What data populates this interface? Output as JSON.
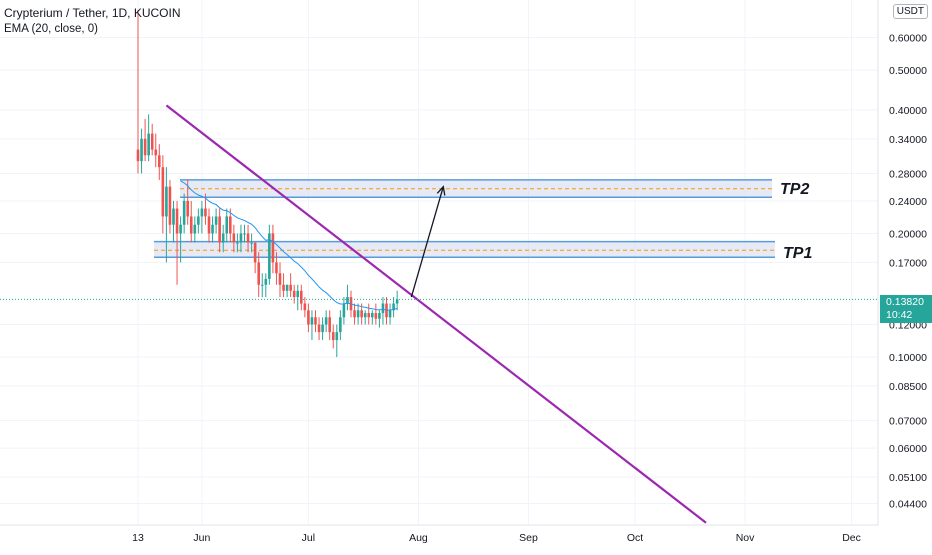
{
  "header": {
    "title": "Crypterium / Tether, 1D, KUCOIN",
    "indicator": "EMA (20, close, 0)",
    "currency": "USDT"
  },
  "last_price": {
    "price": "0.13820",
    "countdown": "10:42"
  },
  "annotations": {
    "tp1": "TP1",
    "tp2": "TP2"
  },
  "colors": {
    "up": "#26a69a",
    "down": "#ef5350",
    "ema": "#2196f3",
    "trendline": "#9c27b0",
    "zone_fill": "#d1d9f0",
    "zone_border": "#5b9bd5",
    "zone_mid": "#ff9800",
    "grid": "#f0f3fa"
  },
  "chart_data": {
    "type": "candlestick",
    "title": "Crypterium / Tether, 1D, KUCOIN",
    "scale": "log",
    "ylim": [
      0.039,
      0.72
    ],
    "x_ticks": [
      "13",
      "Jun",
      "Jul",
      "Aug",
      "Sep",
      "Oct",
      "Nov",
      "Dec"
    ],
    "y_ticks": [
      0.6,
      0.5,
      0.4,
      0.34,
      0.28,
      0.24,
      0.2,
      0.17,
      0.12,
      0.1,
      0.085,
      0.07,
      0.06,
      0.051,
      0.044
    ],
    "y_tick_labels": [
      "0.60000",
      "0.50000",
      "0.40000",
      "0.34000",
      "0.28000",
      "0.24000",
      "0.20000",
      "0.17000",
      "0.12000",
      "0.10000",
      "0.08500",
      "0.07000",
      "0.06000",
      "0.05100",
      "0.04400"
    ],
    "candles": [
      {
        "o": 0.32,
        "h": 0.7,
        "l": 0.28,
        "c": 0.3
      },
      {
        "o": 0.3,
        "h": 0.36,
        "l": 0.28,
        "c": 0.34
      },
      {
        "o": 0.34,
        "h": 0.38,
        "l": 0.3,
        "c": 0.31
      },
      {
        "o": 0.31,
        "h": 0.39,
        "l": 0.3,
        "c": 0.35
      },
      {
        "o": 0.35,
        "h": 0.37,
        "l": 0.31,
        "c": 0.32
      },
      {
        "o": 0.32,
        "h": 0.35,
        "l": 0.29,
        "c": 0.31
      },
      {
        "o": 0.31,
        "h": 0.33,
        "l": 0.27,
        "c": 0.29
      },
      {
        "o": 0.29,
        "h": 0.31,
        "l": 0.2,
        "c": 0.22
      },
      {
        "o": 0.22,
        "h": 0.29,
        "l": 0.17,
        "c": 0.26
      },
      {
        "o": 0.26,
        "h": 0.27,
        "l": 0.2,
        "c": 0.21
      },
      {
        "o": 0.21,
        "h": 0.24,
        "l": 0.19,
        "c": 0.23
      },
      {
        "o": 0.23,
        "h": 0.24,
        "l": 0.15,
        "c": 0.2
      },
      {
        "o": 0.2,
        "h": 0.22,
        "l": 0.17,
        "c": 0.21
      },
      {
        "o": 0.21,
        "h": 0.25,
        "l": 0.2,
        "c": 0.24
      },
      {
        "o": 0.24,
        "h": 0.27,
        "l": 0.21,
        "c": 0.22
      },
      {
        "o": 0.22,
        "h": 0.24,
        "l": 0.19,
        "c": 0.2
      },
      {
        "o": 0.2,
        "h": 0.22,
        "l": 0.19,
        "c": 0.21
      },
      {
        "o": 0.21,
        "h": 0.23,
        "l": 0.2,
        "c": 0.22
      },
      {
        "o": 0.22,
        "h": 0.24,
        "l": 0.2,
        "c": 0.23
      },
      {
        "o": 0.23,
        "h": 0.25,
        "l": 0.21,
        "c": 0.22
      },
      {
        "o": 0.22,
        "h": 0.23,
        "l": 0.19,
        "c": 0.2
      },
      {
        "o": 0.2,
        "h": 0.22,
        "l": 0.19,
        "c": 0.21
      },
      {
        "o": 0.21,
        "h": 0.23,
        "l": 0.2,
        "c": 0.22
      },
      {
        "o": 0.22,
        "h": 0.23,
        "l": 0.18,
        "c": 0.19
      },
      {
        "o": 0.19,
        "h": 0.21,
        "l": 0.18,
        "c": 0.2
      },
      {
        "o": 0.2,
        "h": 0.23,
        "l": 0.19,
        "c": 0.22
      },
      {
        "o": 0.22,
        "h": 0.23,
        "l": 0.19,
        "c": 0.2
      },
      {
        "o": 0.2,
        "h": 0.21,
        "l": 0.18,
        "c": 0.19
      },
      {
        "o": 0.19,
        "h": 0.2,
        "l": 0.18,
        "c": 0.19
      },
      {
        "o": 0.19,
        "h": 0.21,
        "l": 0.18,
        "c": 0.2
      },
      {
        "o": 0.2,
        "h": 0.21,
        "l": 0.19,
        "c": 0.2
      },
      {
        "o": 0.2,
        "h": 0.21,
        "l": 0.18,
        "c": 0.19
      },
      {
        "o": 0.19,
        "h": 0.2,
        "l": 0.18,
        "c": 0.19
      },
      {
        "o": 0.19,
        "h": 0.19,
        "l": 0.16,
        "c": 0.17
      },
      {
        "o": 0.17,
        "h": 0.18,
        "l": 0.14,
        "c": 0.15
      },
      {
        "o": 0.15,
        "h": 0.16,
        "l": 0.14,
        "c": 0.15
      },
      {
        "o": 0.15,
        "h": 0.16,
        "l": 0.14,
        "c": 0.155
      },
      {
        "o": 0.155,
        "h": 0.21,
        "l": 0.15,
        "c": 0.2
      },
      {
        "o": 0.2,
        "h": 0.21,
        "l": 0.16,
        "c": 0.17
      },
      {
        "o": 0.17,
        "h": 0.18,
        "l": 0.15,
        "c": 0.16
      },
      {
        "o": 0.16,
        "h": 0.17,
        "l": 0.14,
        "c": 0.15
      },
      {
        "o": 0.15,
        "h": 0.16,
        "l": 0.14,
        "c": 0.145
      },
      {
        "o": 0.145,
        "h": 0.15,
        "l": 0.14,
        "c": 0.15
      },
      {
        "o": 0.15,
        "h": 0.16,
        "l": 0.14,
        "c": 0.145
      },
      {
        "o": 0.145,
        "h": 0.15,
        "l": 0.135,
        "c": 0.14
      },
      {
        "o": 0.14,
        "h": 0.15,
        "l": 0.13,
        "c": 0.145
      },
      {
        "o": 0.145,
        "h": 0.15,
        "l": 0.13,
        "c": 0.135
      },
      {
        "o": 0.135,
        "h": 0.14,
        "l": 0.125,
        "c": 0.13
      },
      {
        "o": 0.13,
        "h": 0.135,
        "l": 0.115,
        "c": 0.12
      },
      {
        "o": 0.12,
        "h": 0.13,
        "l": 0.11,
        "c": 0.125
      },
      {
        "o": 0.125,
        "h": 0.13,
        "l": 0.115,
        "c": 0.12
      },
      {
        "o": 0.12,
        "h": 0.125,
        "l": 0.11,
        "c": 0.115
      },
      {
        "o": 0.115,
        "h": 0.125,
        "l": 0.11,
        "c": 0.12
      },
      {
        "o": 0.12,
        "h": 0.13,
        "l": 0.115,
        "c": 0.125
      },
      {
        "o": 0.125,
        "h": 0.13,
        "l": 0.11,
        "c": 0.115
      },
      {
        "o": 0.115,
        "h": 0.12,
        "l": 0.105,
        "c": 0.11
      },
      {
        "o": 0.11,
        "h": 0.12,
        "l": 0.1,
        "c": 0.115
      },
      {
        "o": 0.115,
        "h": 0.13,
        "l": 0.11,
        "c": 0.125
      },
      {
        "o": 0.125,
        "h": 0.14,
        "l": 0.12,
        "c": 0.135
      },
      {
        "o": 0.135,
        "h": 0.15,
        "l": 0.13,
        "c": 0.14
      },
      {
        "o": 0.14,
        "h": 0.145,
        "l": 0.125,
        "c": 0.13
      },
      {
        "o": 0.13,
        "h": 0.135,
        "l": 0.12,
        "c": 0.125
      },
      {
        "o": 0.125,
        "h": 0.135,
        "l": 0.12,
        "c": 0.13
      },
      {
        "o": 0.13,
        "h": 0.135,
        "l": 0.12,
        "c": 0.125
      },
      {
        "o": 0.125,
        "h": 0.13,
        "l": 0.12,
        "c": 0.128
      },
      {
        "o": 0.128,
        "h": 0.135,
        "l": 0.12,
        "c": 0.125
      },
      {
        "o": 0.125,
        "h": 0.13,
        "l": 0.12,
        "c": 0.128
      },
      {
        "o": 0.128,
        "h": 0.135,
        "l": 0.12,
        "c": 0.124
      },
      {
        "o": 0.124,
        "h": 0.13,
        "l": 0.118,
        "c": 0.128
      },
      {
        "o": 0.128,
        "h": 0.14,
        "l": 0.12,
        "c": 0.135
      },
      {
        "o": 0.135,
        "h": 0.14,
        "l": 0.12,
        "c": 0.125
      },
      {
        "o": 0.125,
        "h": 0.135,
        "l": 0.12,
        "c": 0.13
      },
      {
        "o": 0.13,
        "h": 0.14,
        "l": 0.125,
        "c": 0.135
      },
      {
        "o": 0.135,
        "h": 0.145,
        "l": 0.13,
        "c": 0.138
      }
    ],
    "ema_period": 20,
    "zones": [
      {
        "name": "TP2",
        "low": 0.245,
        "high": 0.27,
        "mid": 0.257
      },
      {
        "name": "TP1",
        "low": 0.175,
        "high": 0.191,
        "mid": 0.182
      }
    ],
    "trendline": {
      "from_index": 8,
      "from_price": 0.41,
      "to_index": 160,
      "to_price": 0.0395
    },
    "arrow": {
      "from_index": 77,
      "from_price": 0.14,
      "to_index": 86,
      "to_price": 0.26
    },
    "last_price": 0.1382
  }
}
